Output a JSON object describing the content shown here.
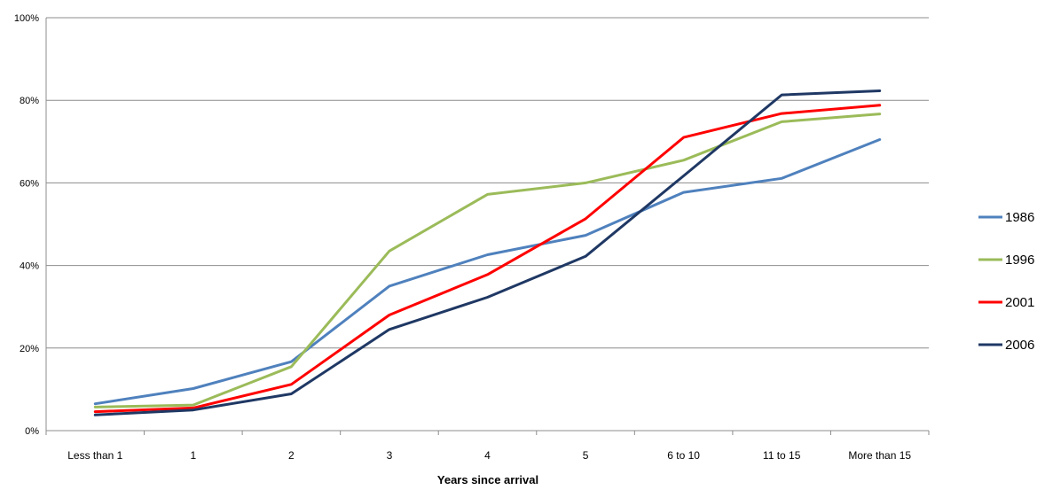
{
  "chart_data": {
    "type": "line",
    "xlabel": "Years since arrival",
    "ylabel": "",
    "ylim": [
      0,
      100
    ],
    "y_ticks": [
      0,
      20,
      40,
      60,
      80,
      100
    ],
    "y_tick_labels": [
      "0%",
      "20%",
      "40%",
      "60%",
      "80%",
      "100%"
    ],
    "grid": true,
    "legend_position": "right",
    "categories": [
      "Less than 1",
      "1",
      "2",
      "3",
      "4",
      "5",
      "6  to 10",
      "11  to 15",
      "More than 15"
    ],
    "series": [
      {
        "name": "1986",
        "color": "#4f81bd",
        "values": [
          6.5,
          10.2,
          16.7,
          35.0,
          42.6,
          47.3,
          57.7,
          61.1,
          70.5
        ]
      },
      {
        "name": "1996",
        "color": "#9bbb59",
        "values": [
          5.7,
          6.2,
          15.5,
          43.5,
          57.2,
          60.0,
          65.5,
          74.8,
          76.7
        ]
      },
      {
        "name": "2001",
        "color": "#ff0000",
        "values": [
          4.6,
          5.5,
          11.2,
          28.0,
          37.8,
          51.3,
          71.0,
          76.8,
          78.8
        ]
      },
      {
        "name": "2006",
        "color": "#1f3864",
        "values": [
          3.8,
          5.0,
          8.9,
          24.5,
          32.3,
          42.2,
          61.7,
          81.3,
          82.3
        ]
      }
    ]
  }
}
